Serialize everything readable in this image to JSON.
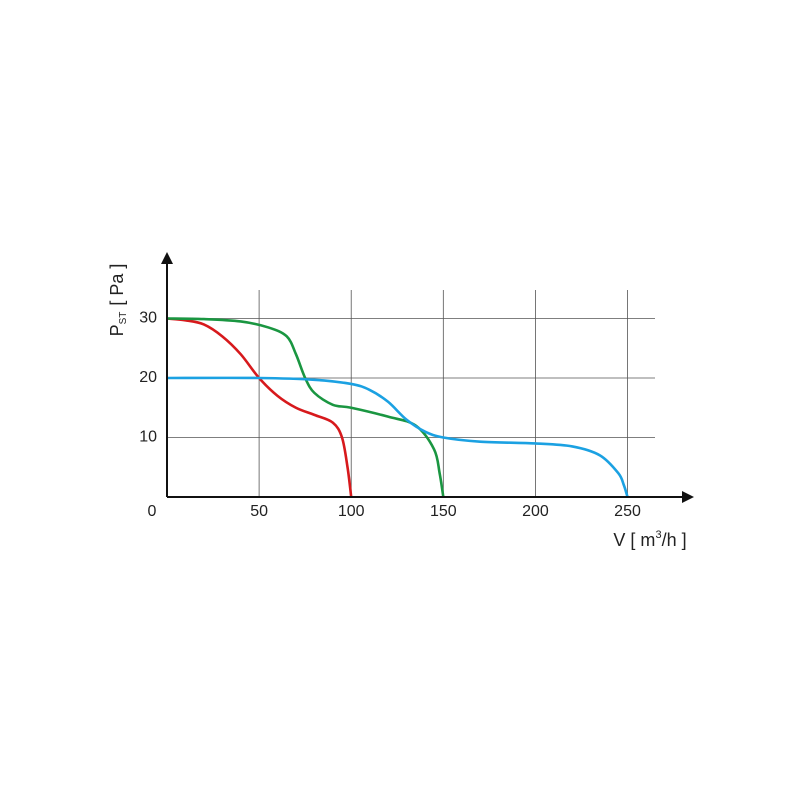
{
  "chart_data": {
    "type": "line",
    "x_label": [
      "V [ m",
      "3",
      "/h ]"
    ],
    "y_label": [
      "P",
      "ST",
      "[ Pa ]"
    ],
    "xlim": [
      0,
      285
    ],
    "ylim": [
      0,
      40
    ],
    "xticks": [
      0,
      50,
      100,
      150,
      200,
      250
    ],
    "yticks": [
      10,
      20,
      30
    ],
    "grid": true,
    "series": [
      {
        "color": "#d7191c",
        "x": [
          0,
          10,
          20,
          30,
          40,
          50,
          60,
          70,
          80,
          90,
          95,
          98,
          100
        ],
        "values": [
          30,
          29.7,
          29,
          27,
          24,
          20,
          17,
          15,
          13.8,
          12.5,
          10,
          5,
          0
        ]
      },
      {
        "color": "#1a9641",
        "x": [
          0,
          20,
          40,
          55,
          65,
          70,
          75,
          80,
          90,
          100,
          120,
          135,
          145,
          148,
          150
        ],
        "values": [
          30,
          29.9,
          29.5,
          28.5,
          27,
          24,
          20,
          17.5,
          15.5,
          15,
          13.5,
          12,
          8,
          4,
          0
        ]
      },
      {
        "color": "#1ba1e2",
        "x": [
          0,
          50,
          80,
          100,
          110,
          120,
          130,
          140,
          150,
          170,
          200,
          220,
          235,
          245,
          248,
          250
        ],
        "values": [
          20,
          20,
          19.7,
          19,
          18,
          16,
          13,
          11,
          10,
          9.3,
          9,
          8.5,
          7,
          4,
          2,
          0
        ]
      }
    ]
  }
}
